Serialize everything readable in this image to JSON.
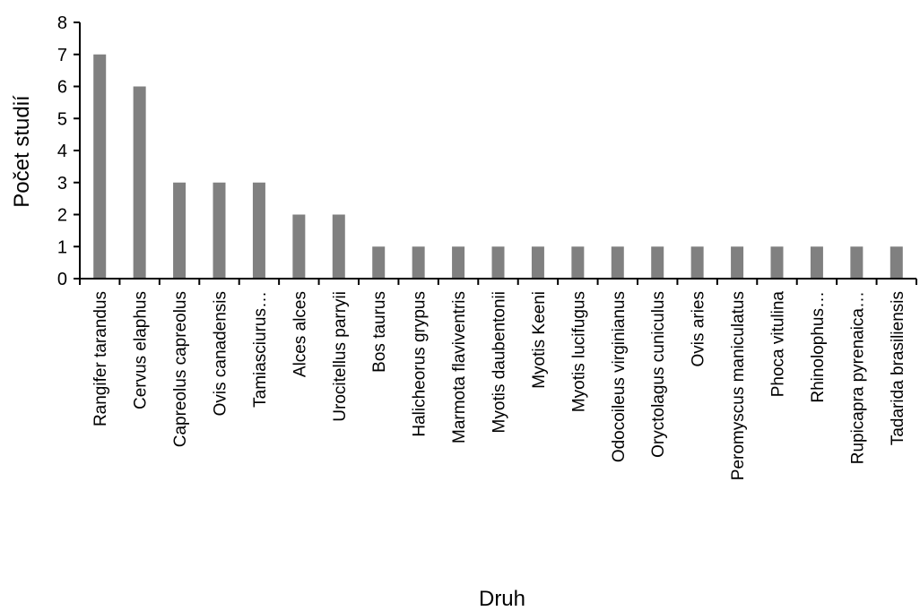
{
  "chart_data": {
    "type": "bar",
    "title": "",
    "xlabel": "Druh",
    "ylabel": "Počet studií",
    "ylim": [
      0,
      8
    ],
    "yticks": [
      0,
      1,
      2,
      3,
      4,
      5,
      6,
      7,
      8
    ],
    "grid": false,
    "legend": "none",
    "bar_color": "#808080",
    "categories": [
      "Rangifer tarandus",
      "Cervus elaphus",
      "Capreolus capreolus",
      "Ovis canadensis",
      "Tamiasciurus…",
      "Alces alces",
      "Urocitellus parryii",
      "Bos taurus",
      "Halicheorus grypus",
      "Marmota flaviventris",
      "Myotis daubentonii",
      "Myotis Keeni",
      "Myotis lucifugus",
      "Odocoileus virginianus",
      "Oryctolagus cuniculus",
      "Ovis aries",
      "Peromyscus maniculatus",
      "Phoca vitulina",
      "Rhinolophus…",
      "Rupicapra pyrenaica…",
      "Tadarida brasiliensis"
    ],
    "values": [
      7,
      6,
      3,
      3,
      3,
      2,
      2,
      1,
      1,
      1,
      1,
      1,
      1,
      1,
      1,
      1,
      1,
      1,
      1,
      1,
      1
    ]
  }
}
